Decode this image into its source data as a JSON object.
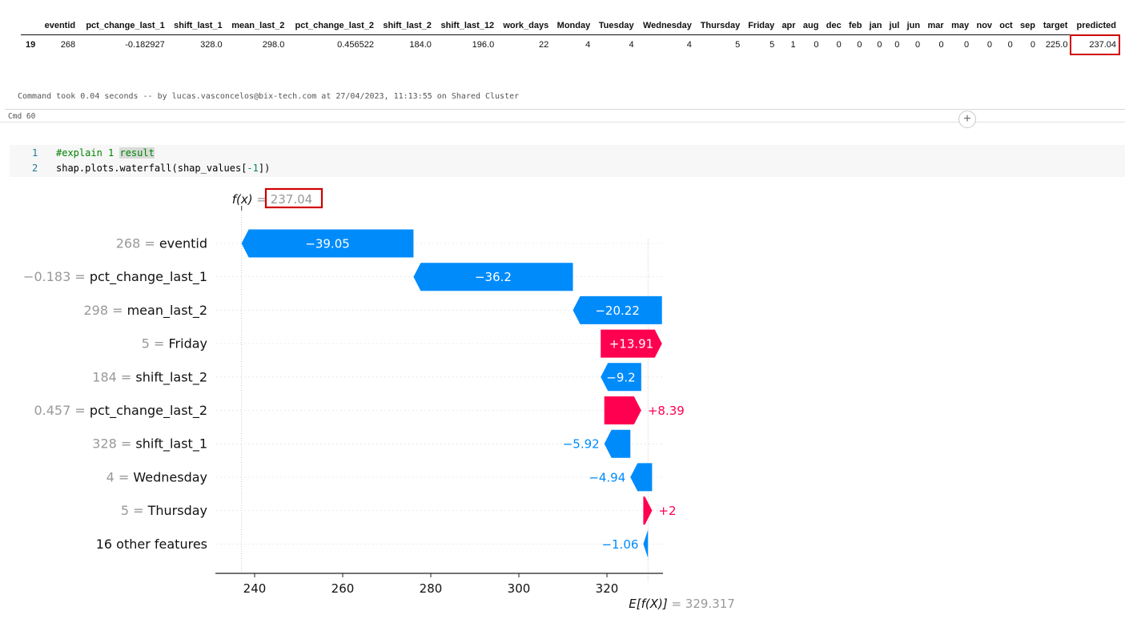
{
  "output_table": {
    "columns": [
      "",
      "eventid",
      "pct_change_last_1",
      "shift_last_1",
      "mean_last_2",
      "pct_change_last_2",
      "shift_last_2",
      "shift_last_12",
      "work_days",
      "Monday",
      "Tuesday",
      "Wednesday",
      "Thursday",
      "Friday",
      "apr",
      "aug",
      "dec",
      "feb",
      "jan",
      "jul",
      "jun",
      "mar",
      "may",
      "nov",
      "oct",
      "sep",
      "target",
      "predicted"
    ],
    "row": [
      "19",
      "268",
      "-0.182927",
      "328.0",
      "298.0",
      "0.456522",
      "184.0",
      "196.0",
      "22",
      "4",
      "4",
      "4",
      "5",
      "5",
      "1",
      "0",
      "0",
      "0",
      "0",
      "0",
      "0",
      "0",
      "0",
      "0",
      "0",
      "0",
      "225.0",
      "237.04"
    ]
  },
  "command_info": "Command took 0.04 seconds -- by lucas.vasconcelos@bix-tech.com at 27/04/2023, 11:13:55 on Shared Cluster",
  "cell_label": "Cmd 60",
  "add_cell_symbol": "+",
  "code": {
    "line_numbers": [
      "1",
      "2"
    ],
    "line1_comment": "#explain 1 ",
    "line1_selected": "result",
    "line2_prefix": "shap.plots.waterfall(shap_values[",
    "line2_index": "-1",
    "line2_suffix": "])"
  },
  "chart_data": {
    "type": "bar",
    "subtype": "shap-waterfall",
    "fx_label": "f(x)",
    "fx_eq": " = ",
    "fx_value": 237.04,
    "fx_value_text": "237.04",
    "base_label": "E[f(X)]",
    "base_eq": " = ",
    "base_value": 329.317,
    "base_value_text": "329.317",
    "features": [
      {
        "value": "268",
        "name": "eventid",
        "shap": -39.05,
        "label": "−39.05"
      },
      {
        "value": "−0.183",
        "name": "pct_change_last_1",
        "shap": -36.2,
        "label": "−36.2"
      },
      {
        "value": "298",
        "name": "mean_last_2",
        "shap": -20.22,
        "label": "−20.22"
      },
      {
        "value": "5",
        "name": "Friday",
        "shap": 13.91,
        "label": "+13.91"
      },
      {
        "value": "184",
        "name": "shift_last_2",
        "shap": -9.2,
        "label": "−9.2"
      },
      {
        "value": "0.457",
        "name": "pct_change_last_2",
        "shap": 8.39,
        "label": "+8.39"
      },
      {
        "value": "328",
        "name": "shift_last_1",
        "shap": -5.92,
        "label": "−5.92"
      },
      {
        "value": "4",
        "name": "Wednesday",
        "shap": -4.94,
        "label": "−4.94"
      },
      {
        "value": "5",
        "name": "Thursday",
        "shap": 2.0,
        "label": "+2"
      },
      {
        "value": "",
        "name": "16 other features",
        "shap": -1.06,
        "label": "−1.06"
      }
    ],
    "xticks": [
      240,
      260,
      280,
      300,
      320
    ],
    "xlim": [
      232,
      332
    ],
    "colors": {
      "negative": "#008bfb",
      "positive": "#ff0051",
      "value_text": "#999999",
      "highlight": "#d00000"
    }
  }
}
